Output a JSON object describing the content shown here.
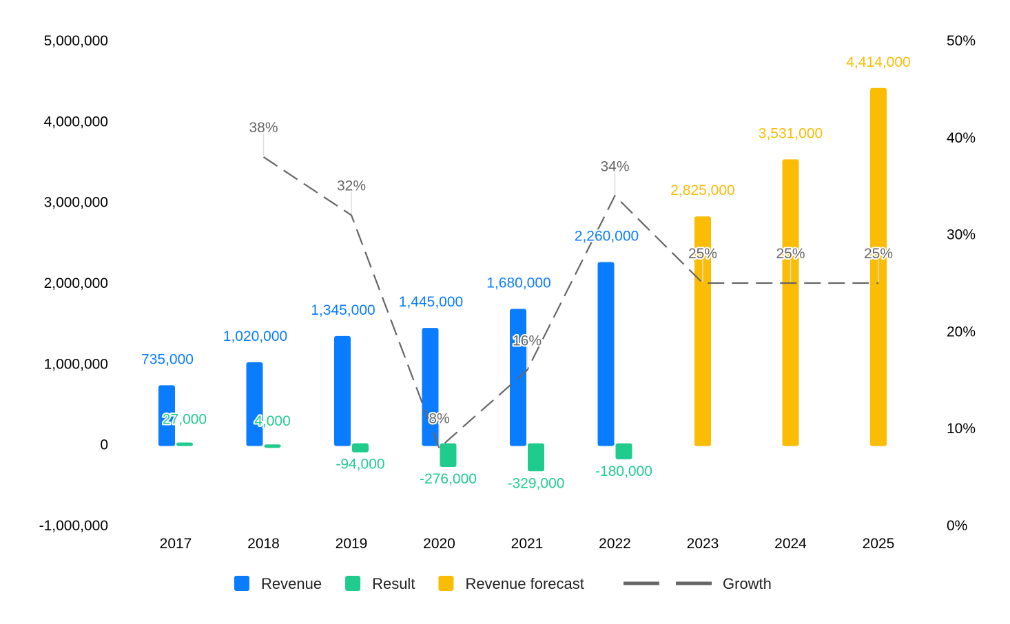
{
  "chart_data": {
    "type": "bar",
    "categories": [
      "2017",
      "2018",
      "2019",
      "2020",
      "2021",
      "2022",
      "2023",
      "2024",
      "2025"
    ],
    "series": [
      {
        "name": "Revenue",
        "kind": "bar",
        "axis": "left",
        "color": "#0a7cff",
        "values": [
          735000,
          1020000,
          1345000,
          1445000,
          1680000,
          2260000,
          null,
          null,
          null
        ],
        "labels": [
          "735,000",
          "1,020,000",
          "1,345,000",
          "1,445,000",
          "1,680,000",
          "2,260,000",
          "",
          "",
          ""
        ]
      },
      {
        "name": "Result",
        "kind": "bar",
        "axis": "left",
        "color": "#1fcc8e",
        "values": [
          27000,
          4000,
          -94000,
          -276000,
          -329000,
          -180000,
          null,
          null,
          null
        ],
        "labels": [
          "27,000",
          "4,000",
          "-94,000",
          "-276,000",
          "-329,000",
          "-180,000",
          "",
          "",
          ""
        ]
      },
      {
        "name": "Revenue forecast",
        "kind": "bar",
        "axis": "left",
        "color": "#fbbc04",
        "values": [
          null,
          null,
          null,
          null,
          null,
          null,
          2825000,
          3531000,
          4414000
        ],
        "labels": [
          "",
          "",
          "",
          "",
          "",
          "",
          "2,825,000",
          "3,531,000",
          "4,414,000"
        ]
      },
      {
        "name": "Growth",
        "kind": "line",
        "axis": "right",
        "color": "#666666",
        "dashed": true,
        "values": [
          null,
          38,
          32,
          8,
          16,
          34,
          25,
          25,
          25
        ],
        "labels": [
          "",
          "38%",
          "32%",
          "8%",
          "16%",
          "34%",
          "25%",
          "25%",
          "25%"
        ]
      }
    ],
    "y_left": {
      "ylim": [
        -1000000,
        5000000
      ],
      "ticks": [
        5000000,
        4000000,
        3000000,
        2000000,
        1000000,
        0,
        -1000000
      ],
      "tick_labels": [
        "5,000,000",
        "4,000,000",
        "3,000,000",
        "2,000,000",
        "1,000,000",
        "0",
        "-1,000,000"
      ]
    },
    "y_right": {
      "ylim": [
        0,
        50
      ],
      "ticks": [
        50,
        40,
        30,
        20,
        10,
        0
      ],
      "tick_labels": [
        "50%",
        "40%",
        "30%",
        "20%",
        "10%",
        "0%"
      ]
    },
    "grid": false,
    "legend": {
      "position": "bottom",
      "items": [
        "Revenue",
        "Result",
        "Revenue forecast",
        "Growth"
      ]
    },
    "title": "",
    "xlabel": "",
    "ylabel": ""
  }
}
